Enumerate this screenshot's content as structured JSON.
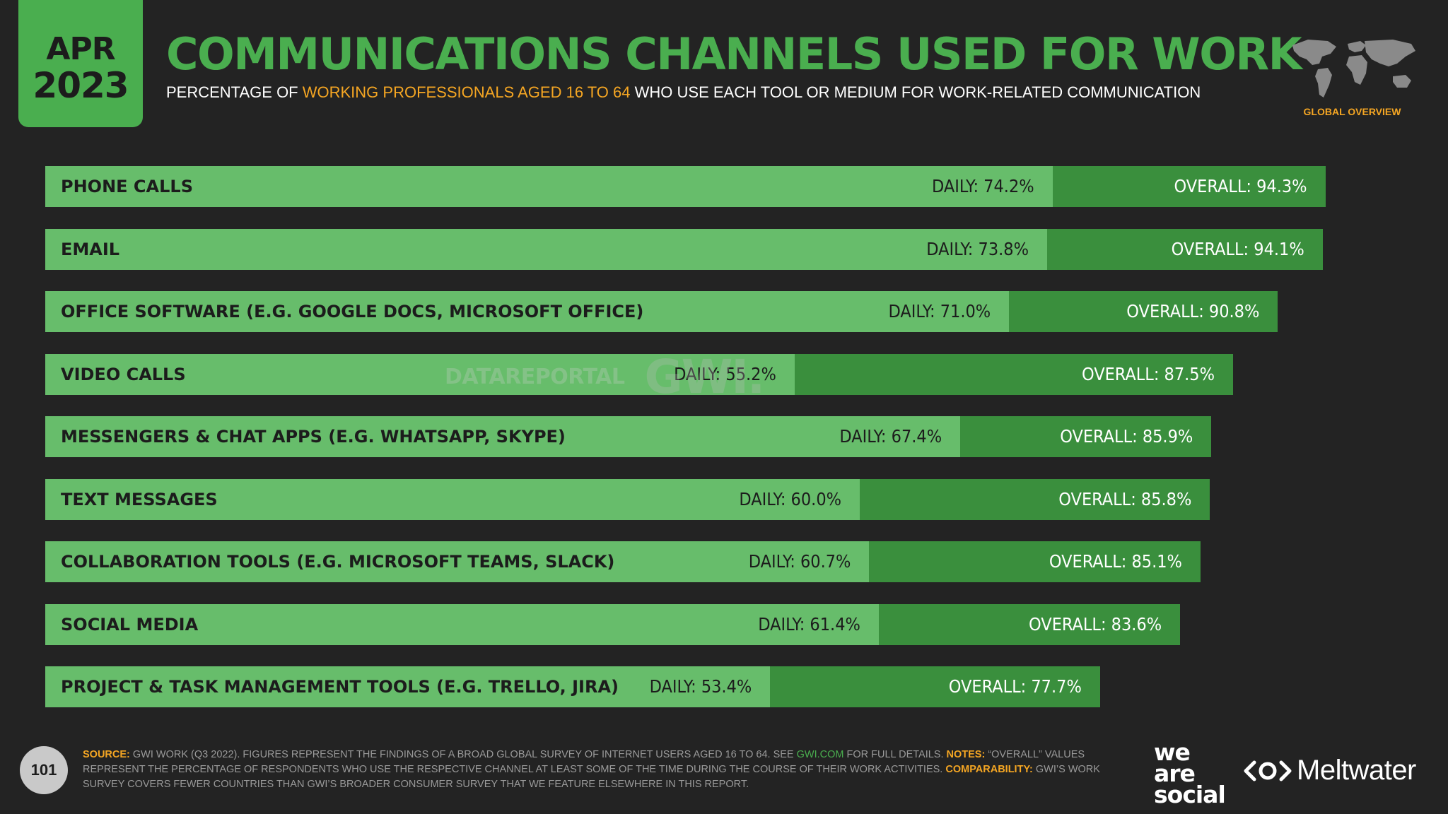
{
  "badge": {
    "month": "APR",
    "year": "2023"
  },
  "title": "COMMUNICATIONS CHANNELS USED FOR WORK",
  "subtitle": {
    "pre": "PERCENTAGE OF ",
    "highlight": "WORKING PROFESSIONALS AGED 16 TO 64",
    "post": " WHO USE EACH TOOL OR MEDIUM FOR WORK-RELATED COMMUNICATION"
  },
  "global_overview": "GLOBAL OVERVIEW",
  "watermark": {
    "datareportal": "DATAREPORTAL",
    "gwi": "GWI."
  },
  "chart_data": {
    "type": "bar",
    "orientation": "horizontal",
    "categories": [
      "PHONE CALLS",
      "EMAIL",
      "OFFICE SOFTWARE (E.G. GOOGLE DOCS, MICROSOFT OFFICE)",
      "VIDEO CALLS",
      "MESSENGERS & CHAT APPS (E.G. WHATSAPP, SKYPE)",
      "TEXT MESSAGES",
      "COLLABORATION TOOLS (E.G. MICROSOFT TEAMS, SLACK)",
      "SOCIAL MEDIA",
      "PROJECT & TASK MANAGEMENT TOOLS (E.G. TRELLO, JIRA)"
    ],
    "series": [
      {
        "name": "DAILY",
        "values": [
          74.2,
          73.8,
          71.0,
          55.2,
          67.4,
          60.0,
          60.7,
          61.4,
          53.4
        ]
      },
      {
        "name": "OVERALL",
        "values": [
          94.3,
          94.1,
          90.8,
          87.5,
          85.9,
          85.8,
          85.1,
          83.6,
          77.7
        ]
      }
    ],
    "daily_labels": [
      "DAILY: 74.2%",
      "DAILY: 73.8%",
      "DAILY: 71.0%",
      "DAILY: 55.2%",
      "DAILY: 67.4%",
      "DAILY: 60.0%",
      "DAILY: 60.7%",
      "DAILY: 61.4%",
      "DAILY: 53.4%"
    ],
    "overall_labels": [
      "OVERALL: 94.3%",
      "OVERALL: 94.1%",
      "OVERALL: 90.8%",
      "OVERALL: 87.5%",
      "OVERALL: 85.9%",
      "OVERALL: 85.8%",
      "OVERALL: 85.1%",
      "OVERALL: 83.6%",
      "OVERALL: 77.7%"
    ],
    "xlim": [
      0,
      100
    ],
    "colors": {
      "daily": "#67bd6b",
      "overall": "#3a8f3d"
    }
  },
  "page_number": "101",
  "footnote": {
    "source_key": "SOURCE:",
    "source_text": " GWI WORK (Q3 2022). FIGURES REPRESENT THE FINDINGS OF A BROAD GLOBAL SURVEY OF INTERNET USERS AGED 16 TO 64. SEE ",
    "link": "GWI.COM",
    "after_link": " FOR FULL DETAILS. ",
    "notes_key": "NOTES:",
    "notes_text": " “OVERALL” VALUES REPRESENT THE PERCENTAGE OF RESPONDENTS WHO USE THE RESPECTIVE CHANNEL AT LEAST SOME OF THE TIME DURING THE COURSE OF THEIR WORK ACTIVITIES. ",
    "comp_key": "COMPARABILITY:",
    "comp_text": " GWI’S WORK SURVEY COVERS FEWER COUNTRIES THAN GWI’S BROADER CONSUMER SURVEY THAT WE FEATURE ELSEWHERE IN THIS REPORT."
  },
  "logos": {
    "was_1": "we",
    "was_2": "are",
    "was_3": "social",
    "meltwater": "Meltwater"
  },
  "colors": {
    "accent": "#4aae4f",
    "highlight": "#f5a623",
    "background": "#232323"
  }
}
